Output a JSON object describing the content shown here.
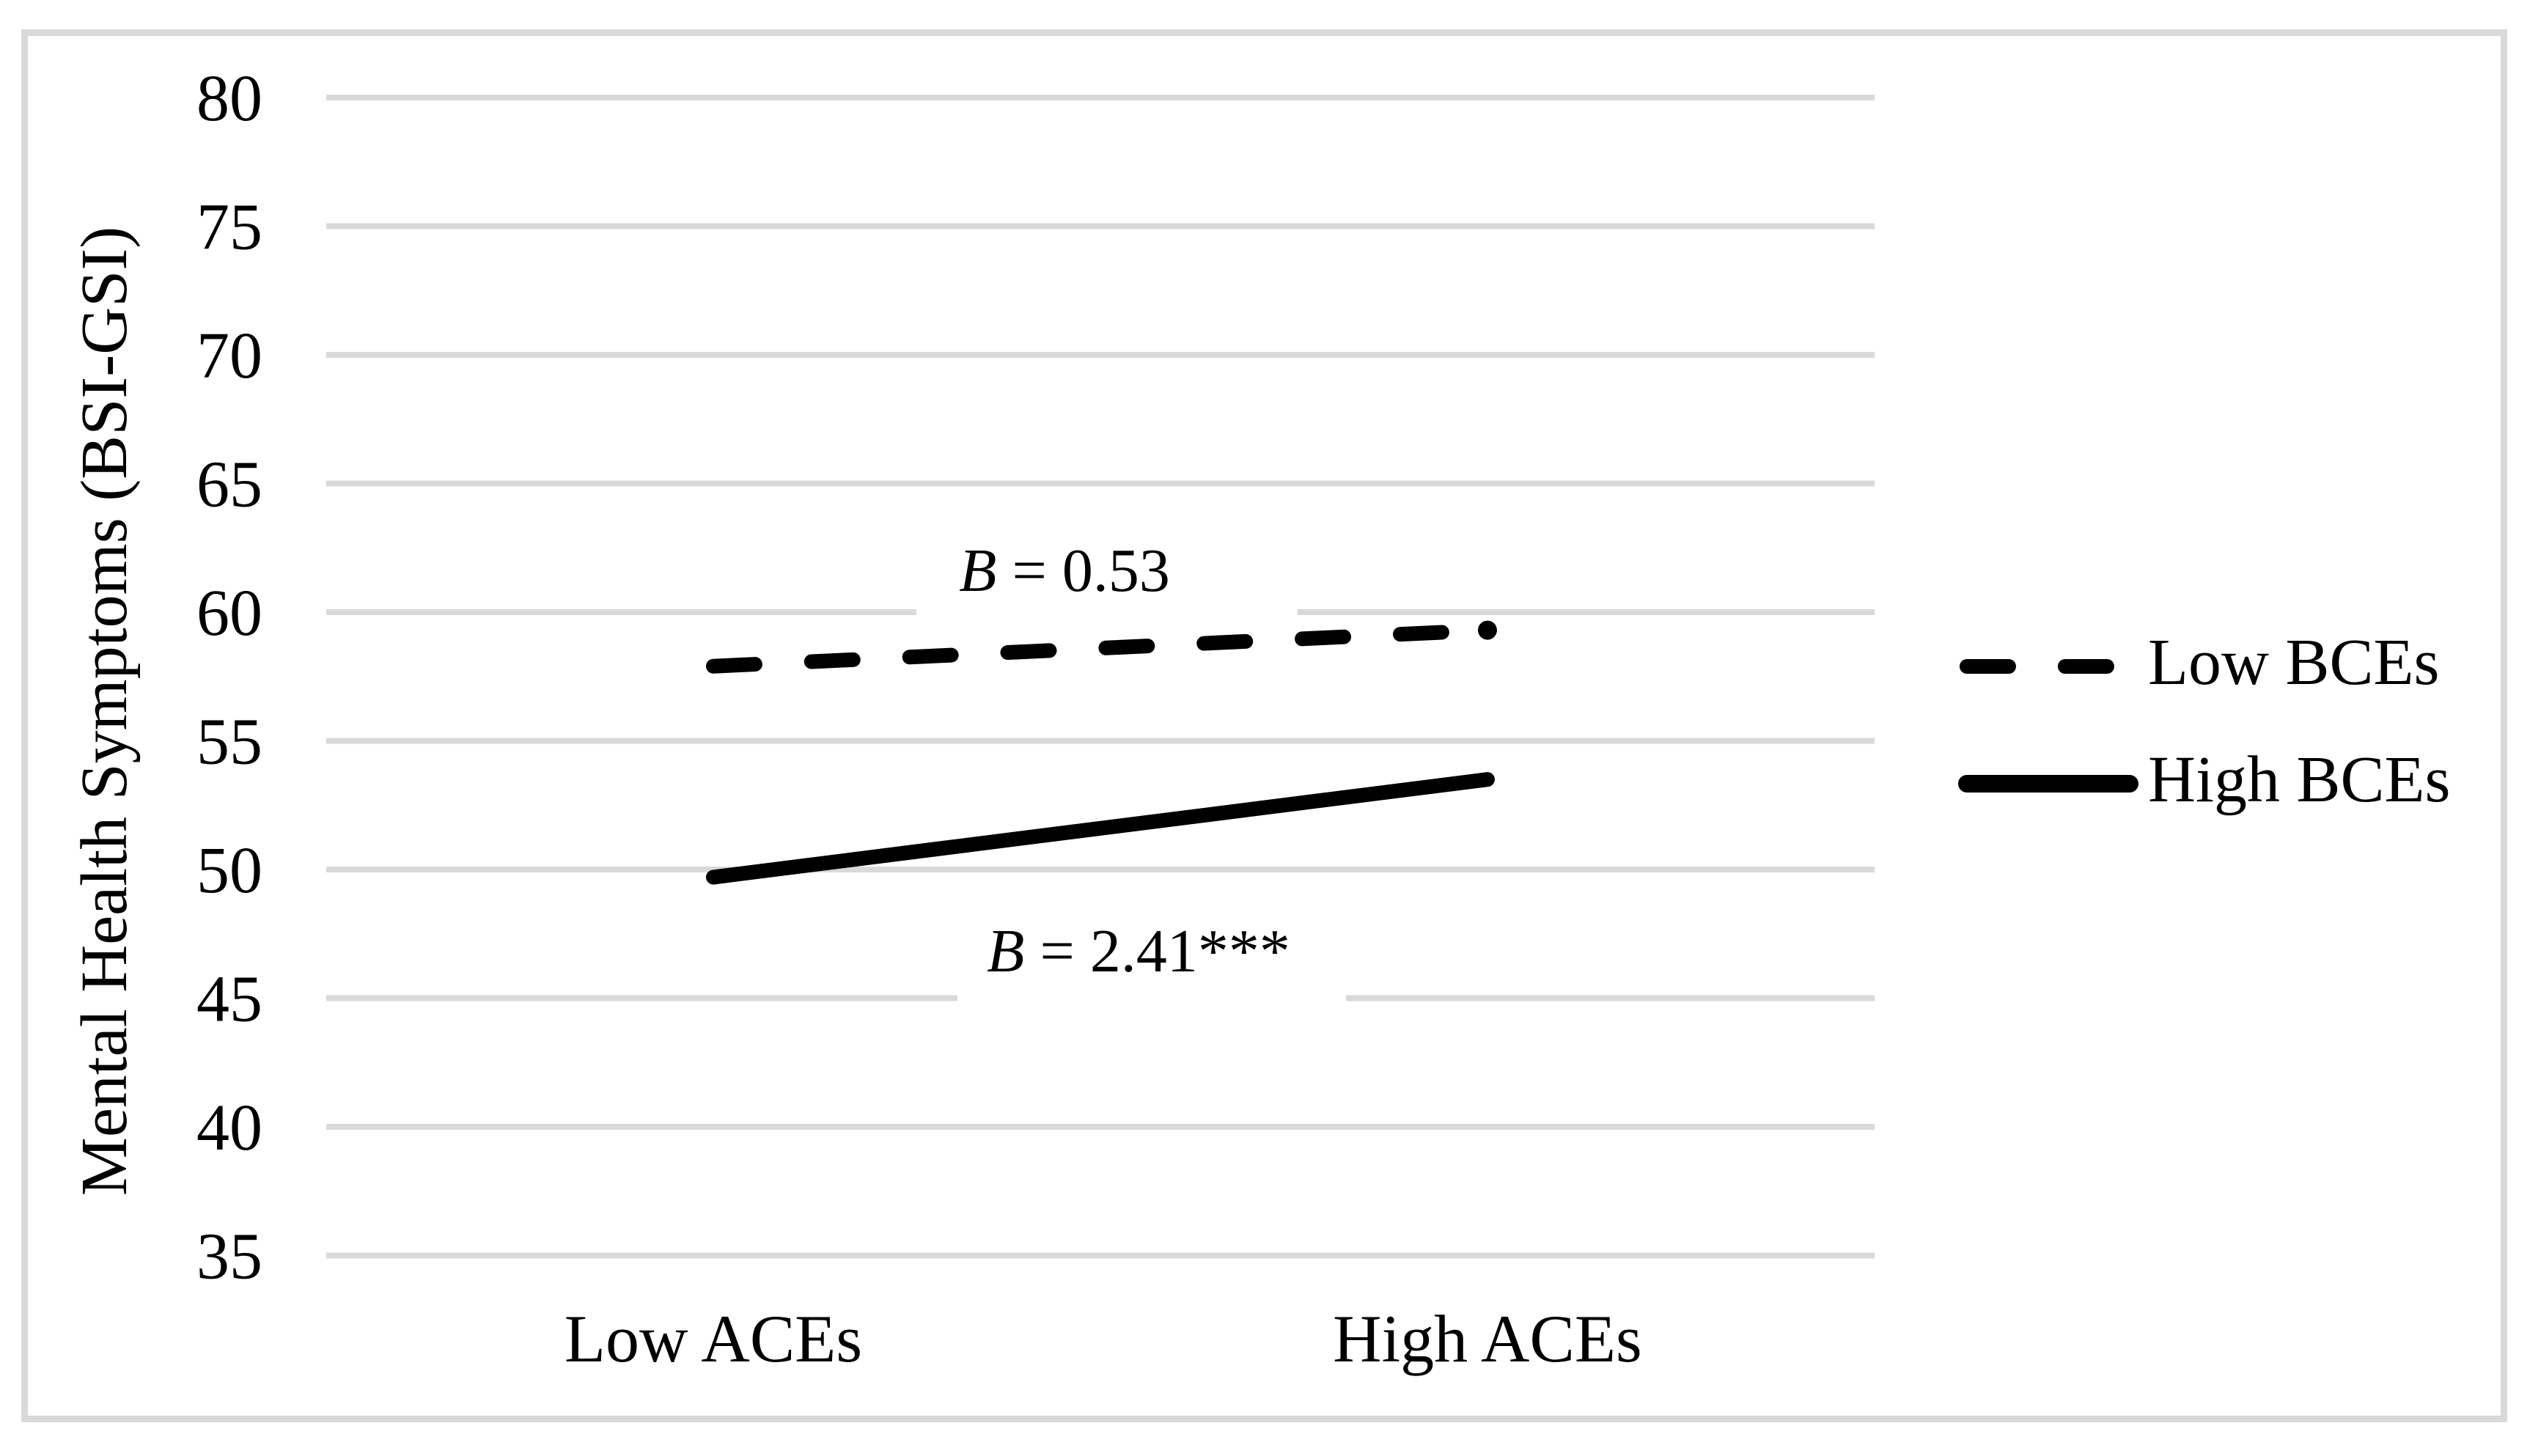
{
  "figure": {
    "y_axis_title": "Mental Health Symptoms (BSI-GSI)",
    "x_tick_labels": [
      "Low ACEs",
      "High ACEs"
    ],
    "y_tick_labels": [
      "80",
      "75",
      "70",
      "65",
      "60",
      "55",
      "50",
      "45",
      "40",
      "35"
    ],
    "annotations": [
      {
        "var": "B",
        "value": " = 0.53"
      },
      {
        "var": "B",
        "value": " = 2.41***"
      }
    ],
    "legend": [
      {
        "label": "Low BCEs",
        "style": "dashed"
      },
      {
        "label": "High BCEs",
        "style": "solid"
      }
    ],
    "colors": {
      "line": "#000000",
      "gridline": "#d9d9d9",
      "border": "#d9d9d9",
      "background": "#ffffff",
      "text": "#000000"
    }
  },
  "chart_data": {
    "type": "line",
    "title": "",
    "categories": [
      "Low ACEs",
      "High ACEs"
    ],
    "series": [
      {
        "name": "Low BCEs",
        "style": "dashed",
        "values": [
          57.9,
          59.3
        ]
      },
      {
        "name": "High BCEs",
        "style": "solid",
        "values": [
          49.7,
          53.5
        ]
      }
    ],
    "xlabel": "",
    "ylabel": "Mental Health Symptoms (BSI-GSI)",
    "ylim": [
      35,
      80
    ],
    "ytick_step": 5,
    "yticks": [
      80,
      75,
      70,
      65,
      60,
      55,
      50,
      45,
      40,
      35
    ],
    "grid": "horizontal",
    "legend_position": "right",
    "annotations": [
      {
        "text": "B = 0.53",
        "series": "Low BCEs",
        "y": 61.0
      },
      {
        "text": "B = 2.41***",
        "series": "High BCEs",
        "y": 46.2
      }
    ]
  }
}
